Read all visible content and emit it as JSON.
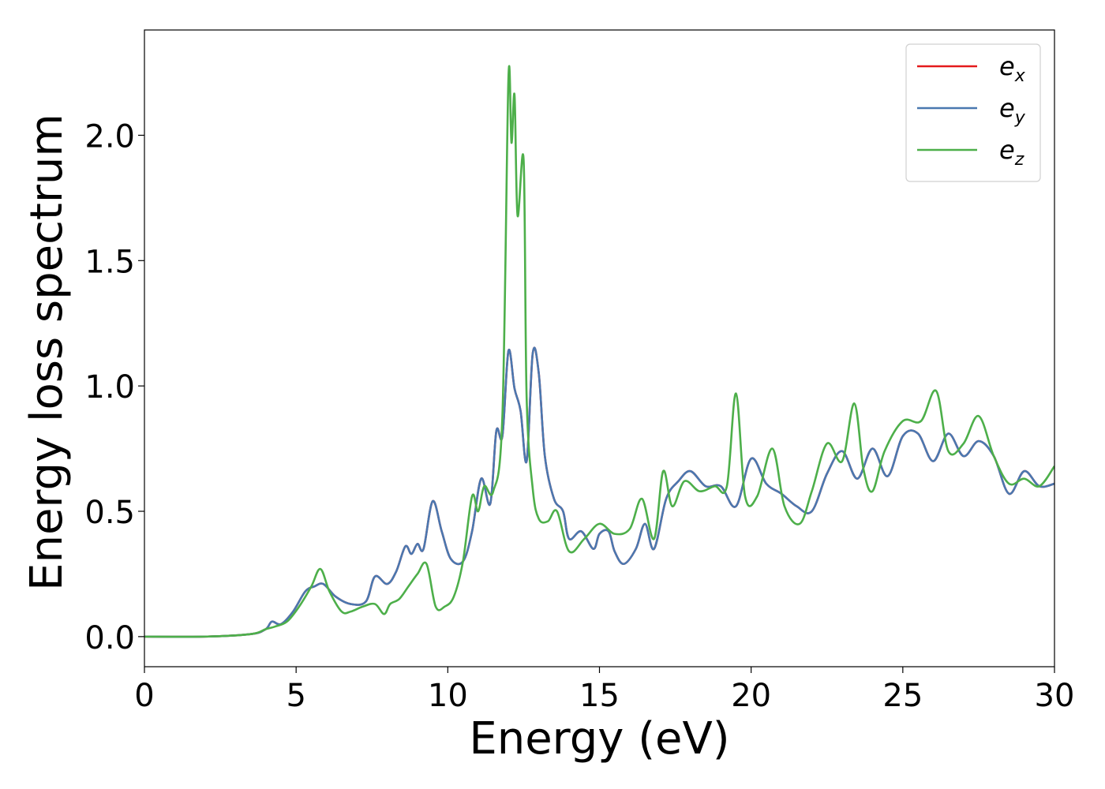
{
  "chart_data": {
    "type": "line",
    "title": "",
    "xlabel": "Energy (eV)",
    "ylabel": "Energy loss spectrum",
    "xlim": [
      0,
      30
    ],
    "ylim": [
      -0.12,
      2.42
    ],
    "xticks": [
      0,
      5,
      10,
      15,
      20,
      25,
      30
    ],
    "yticks": [
      0.0,
      0.5,
      1.0,
      1.5,
      2.0
    ],
    "xtick_labels": [
      "0",
      "5",
      "10",
      "15",
      "20",
      "25",
      "30"
    ],
    "ytick_labels": [
      "0.0",
      "0.5",
      "1.0",
      "1.5",
      "2.0"
    ],
    "grid": false,
    "legend_position": "top-right",
    "series": [
      {
        "name": "e",
        "subscript": "x",
        "color": "#e41a1c",
        "x": [
          0,
          2,
          3.5,
          4,
          4.2,
          4.5,
          4.9,
          5.3,
          5.6,
          5.9,
          6.3,
          6.8,
          7.3,
          7.6,
          8.0,
          8.3,
          8.6,
          8.8,
          9.0,
          9.2,
          9.5,
          9.8,
          10.1,
          10.5,
          10.8,
          11.1,
          11.4,
          11.6,
          11.8,
          12.0,
          12.2,
          12.4,
          12.6,
          12.8,
          13.0,
          13.2,
          13.5,
          13.8,
          14.0,
          14.4,
          14.8,
          15.0,
          15.3,
          15.5,
          15.8,
          16.2,
          16.5,
          16.8,
          17.2,
          17.6,
          18.0,
          18.5,
          19.0,
          19.5,
          20.0,
          20.5,
          21.0,
          21.5,
          22.0,
          22.5,
          23.0,
          23.5,
          24.0,
          24.5,
          25.0,
          25.5,
          26.0,
          26.5,
          27.0,
          27.5,
          28.0,
          28.5,
          29.0,
          29.5,
          30.0
        ],
        "y": [
          0.0,
          0.0,
          0.01,
          0.03,
          0.06,
          0.05,
          0.1,
          0.18,
          0.2,
          0.21,
          0.16,
          0.13,
          0.14,
          0.24,
          0.21,
          0.26,
          0.36,
          0.33,
          0.37,
          0.35,
          0.54,
          0.42,
          0.31,
          0.3,
          0.42,
          0.63,
          0.53,
          0.82,
          0.8,
          1.14,
          0.99,
          0.9,
          0.7,
          1.13,
          1.05,
          0.72,
          0.55,
          0.5,
          0.39,
          0.42,
          0.35,
          0.41,
          0.42,
          0.34,
          0.29,
          0.35,
          0.45,
          0.35,
          0.55,
          0.62,
          0.66,
          0.6,
          0.6,
          0.52,
          0.71,
          0.61,
          0.57,
          0.52,
          0.5,
          0.65,
          0.74,
          0.63,
          0.75,
          0.64,
          0.8,
          0.81,
          0.7,
          0.81,
          0.72,
          0.78,
          0.72,
          0.57,
          0.66,
          0.6,
          0.61
        ]
      },
      {
        "name": "e",
        "subscript": "y",
        "color": "#4a78b0",
        "x": [
          0,
          2,
          3.5,
          4,
          4.2,
          4.5,
          4.9,
          5.3,
          5.6,
          5.9,
          6.3,
          6.8,
          7.3,
          7.6,
          8.0,
          8.3,
          8.6,
          8.8,
          9.0,
          9.2,
          9.5,
          9.8,
          10.1,
          10.5,
          10.8,
          11.1,
          11.4,
          11.6,
          11.8,
          12.0,
          12.2,
          12.4,
          12.6,
          12.8,
          13.0,
          13.2,
          13.5,
          13.8,
          14.0,
          14.4,
          14.8,
          15.0,
          15.3,
          15.5,
          15.8,
          16.2,
          16.5,
          16.8,
          17.2,
          17.6,
          18.0,
          18.5,
          19.0,
          19.5,
          20.0,
          20.5,
          21.0,
          21.5,
          22.0,
          22.5,
          23.0,
          23.5,
          24.0,
          24.5,
          25.0,
          25.5,
          26.0,
          26.5,
          27.0,
          27.5,
          28.0,
          28.5,
          29.0,
          29.5,
          30.0
        ],
        "y": [
          0.0,
          0.0,
          0.01,
          0.03,
          0.06,
          0.05,
          0.1,
          0.18,
          0.2,
          0.21,
          0.16,
          0.13,
          0.14,
          0.24,
          0.21,
          0.26,
          0.36,
          0.33,
          0.37,
          0.35,
          0.54,
          0.42,
          0.31,
          0.3,
          0.42,
          0.63,
          0.53,
          0.82,
          0.8,
          1.14,
          0.99,
          0.9,
          0.7,
          1.13,
          1.05,
          0.72,
          0.55,
          0.5,
          0.39,
          0.42,
          0.35,
          0.41,
          0.42,
          0.34,
          0.29,
          0.35,
          0.45,
          0.35,
          0.55,
          0.62,
          0.66,
          0.6,
          0.6,
          0.52,
          0.71,
          0.61,
          0.57,
          0.52,
          0.5,
          0.65,
          0.74,
          0.63,
          0.75,
          0.64,
          0.8,
          0.81,
          0.7,
          0.81,
          0.72,
          0.78,
          0.72,
          0.57,
          0.66,
          0.6,
          0.61
        ]
      },
      {
        "name": "e",
        "subscript": "z",
        "color": "#4daf4a",
        "x": [
          0,
          2,
          3.5,
          4,
          4.3,
          4.7,
          5.1,
          5.5,
          5.8,
          6.1,
          6.5,
          6.8,
          7.2,
          7.6,
          7.9,
          8.1,
          8.4,
          8.7,
          9.0,
          9.3,
          9.6,
          9.9,
          10.2,
          10.5,
          10.8,
          11.0,
          11.2,
          11.5,
          11.8,
          12.0,
          12.1,
          12.2,
          12.3,
          12.5,
          12.6,
          12.8,
          13.0,
          13.3,
          13.6,
          14.0,
          14.5,
          15.0,
          15.5,
          16.0,
          16.4,
          16.8,
          17.1,
          17.4,
          17.8,
          18.3,
          18.8,
          19.2,
          19.5,
          19.8,
          20.2,
          20.7,
          21.1,
          21.6,
          22.0,
          22.5,
          23.0,
          23.4,
          23.7,
          24.0,
          24.4,
          25.0,
          25.6,
          26.1,
          26.5,
          27.0,
          27.5,
          28.0,
          28.5,
          29.0,
          29.5,
          30.0
        ],
        "y": [
          0.0,
          0.0,
          0.01,
          0.03,
          0.04,
          0.06,
          0.12,
          0.2,
          0.27,
          0.18,
          0.1,
          0.1,
          0.12,
          0.13,
          0.09,
          0.13,
          0.15,
          0.2,
          0.25,
          0.29,
          0.12,
          0.12,
          0.16,
          0.3,
          0.56,
          0.5,
          0.6,
          0.58,
          0.88,
          2.23,
          1.97,
          2.16,
          1.68,
          1.9,
          0.95,
          0.59,
          0.47,
          0.46,
          0.5,
          0.34,
          0.39,
          0.45,
          0.41,
          0.43,
          0.55,
          0.39,
          0.66,
          0.52,
          0.62,
          0.58,
          0.6,
          0.6,
          0.97,
          0.56,
          0.56,
          0.75,
          0.52,
          0.45,
          0.58,
          0.77,
          0.7,
          0.93,
          0.67,
          0.58,
          0.74,
          0.86,
          0.86,
          0.98,
          0.74,
          0.77,
          0.88,
          0.72,
          0.61,
          0.63,
          0.6,
          0.68
        ]
      }
    ]
  }
}
